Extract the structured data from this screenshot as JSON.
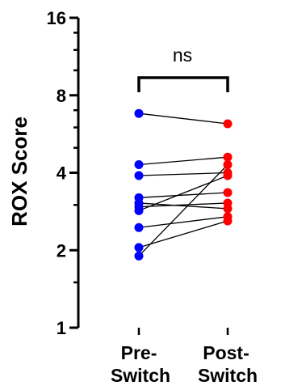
{
  "chart_data": {
    "type": "scatter",
    "scale": "log2",
    "ylabel": "ROX Score",
    "ylim": [
      1,
      16
    ],
    "y_ticks": [
      1,
      2,
      4,
      8,
      16
    ],
    "y_tick_labels": [
      "1",
      "2",
      "4",
      "8",
      "16"
    ],
    "categories": [
      {
        "line1": "Pre-",
        "line2": "Switch",
        "color": "#0000ff"
      },
      {
        "line1": "Post-",
        "line2": "Switch",
        "color": "#ff0000"
      }
    ],
    "significance": "ns",
    "pairs": [
      {
        "pre": 6.8,
        "post": 6.2
      },
      {
        "pre": 4.3,
        "post": 4.6
      },
      {
        "pre": 3.9,
        "post": 4.0
      },
      {
        "pre": 3.2,
        "post": 3.35
      },
      {
        "pre": 3.05,
        "post": 2.9
      },
      {
        "pre": 2.95,
        "post": 3.05
      },
      {
        "pre": 2.85,
        "post": 3.9
      },
      {
        "pre": 2.45,
        "post": 2.7
      },
      {
        "pre": 2.05,
        "post": 2.6
      },
      {
        "pre": 1.9,
        "post": 4.3
      }
    ]
  }
}
